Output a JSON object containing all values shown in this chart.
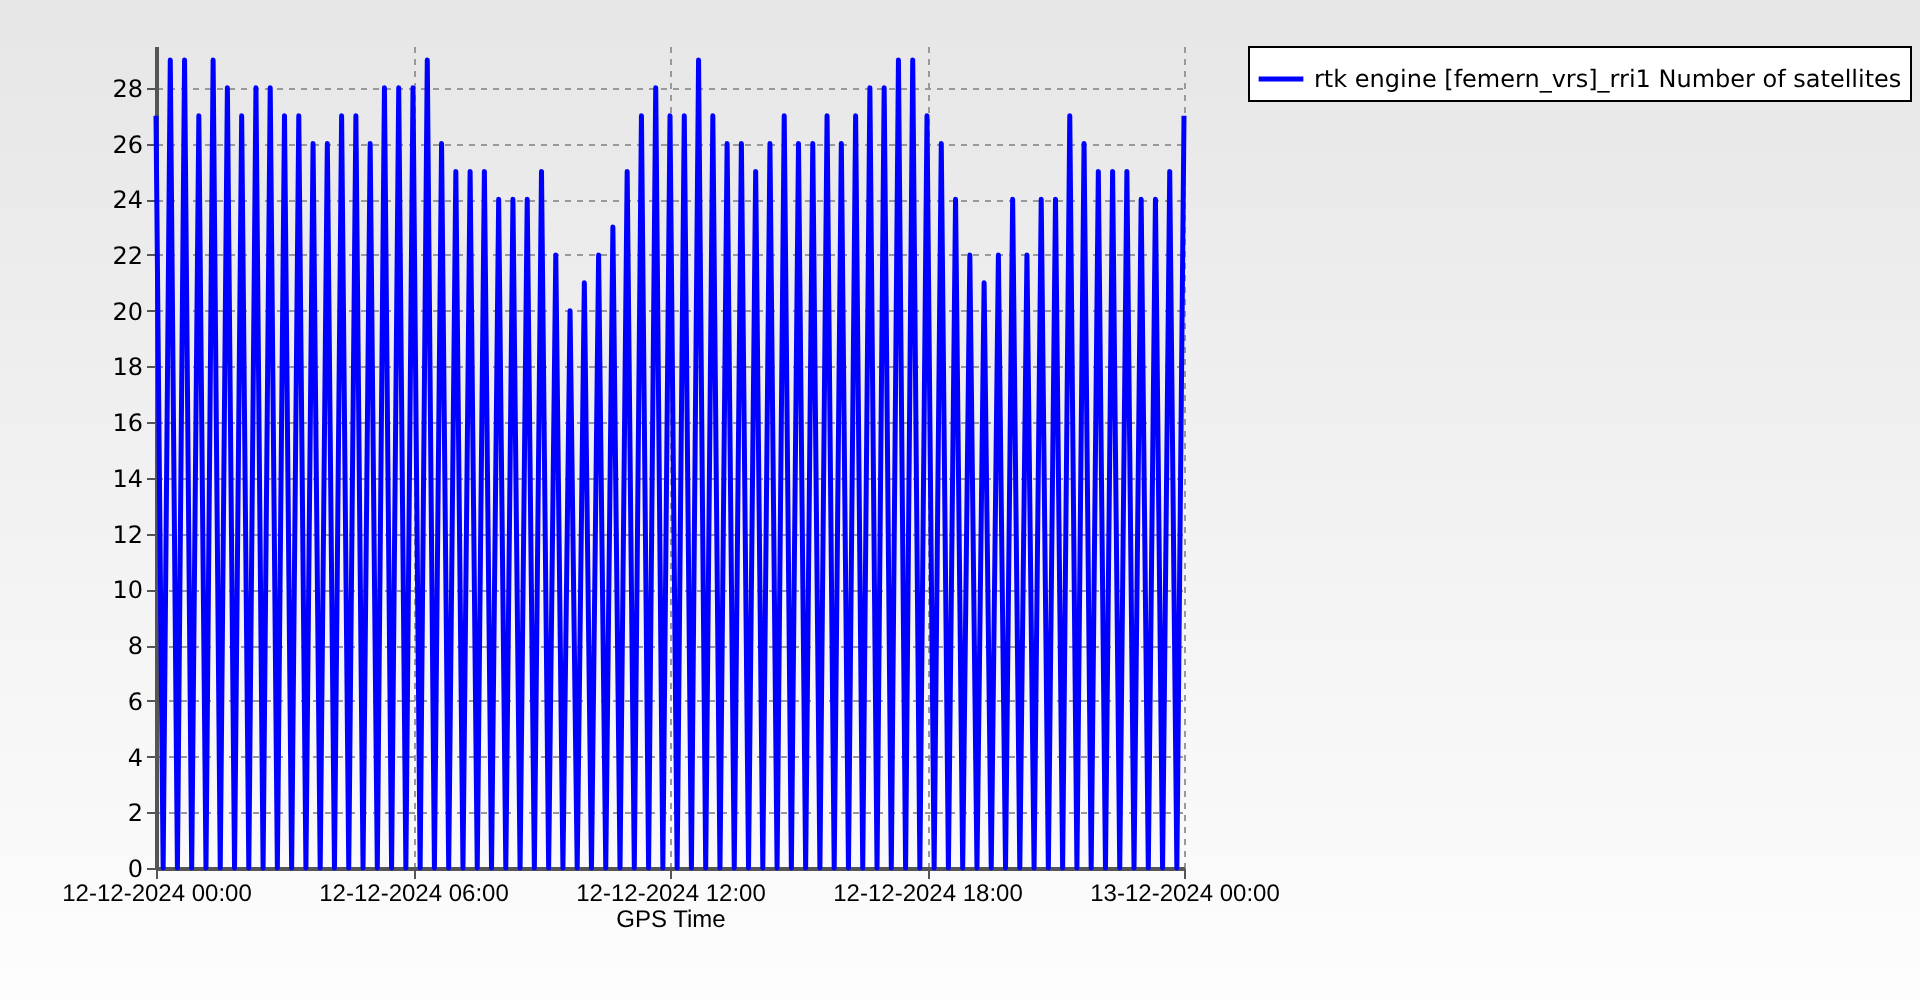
{
  "chart_data": {
    "type": "line",
    "xlabel": "GPS Time",
    "x": [
      "2024-12-12T00:00",
      "2024-12-12T00:10",
      "2024-12-12T00:20",
      "2024-12-12T00:30",
      "2024-12-12T00:40",
      "2024-12-12T00:50",
      "2024-12-12T01:00",
      "2024-12-12T01:10",
      "2024-12-12T01:20",
      "2024-12-12T01:30",
      "2024-12-12T01:40",
      "2024-12-12T01:50",
      "2024-12-12T02:00",
      "2024-12-12T02:10",
      "2024-12-12T02:20",
      "2024-12-12T02:30",
      "2024-12-12T02:40",
      "2024-12-12T02:50",
      "2024-12-12T03:00",
      "2024-12-12T03:10",
      "2024-12-12T03:20",
      "2024-12-12T03:30",
      "2024-12-12T03:40",
      "2024-12-12T03:50",
      "2024-12-12T04:00",
      "2024-12-12T04:10",
      "2024-12-12T04:20",
      "2024-12-12T04:30",
      "2024-12-12T04:40",
      "2024-12-12T04:50",
      "2024-12-12T05:00",
      "2024-12-12T05:10",
      "2024-12-12T05:20",
      "2024-12-12T05:30",
      "2024-12-12T05:40",
      "2024-12-12T05:50",
      "2024-12-12T06:00",
      "2024-12-12T06:10",
      "2024-12-12T06:20",
      "2024-12-12T06:30",
      "2024-12-12T06:40",
      "2024-12-12T06:50",
      "2024-12-12T07:00",
      "2024-12-12T07:10",
      "2024-12-12T07:20",
      "2024-12-12T07:30",
      "2024-12-12T07:40",
      "2024-12-12T07:50",
      "2024-12-12T08:00",
      "2024-12-12T08:10",
      "2024-12-12T08:20",
      "2024-12-12T08:30",
      "2024-12-12T08:40",
      "2024-12-12T08:50",
      "2024-12-12T09:00",
      "2024-12-12T09:10",
      "2024-12-12T09:20",
      "2024-12-12T09:30",
      "2024-12-12T09:40",
      "2024-12-12T09:50",
      "2024-12-12T10:00",
      "2024-12-12T10:10",
      "2024-12-12T10:20",
      "2024-12-12T10:30",
      "2024-12-12T10:40",
      "2024-12-12T10:50",
      "2024-12-12T11:00",
      "2024-12-12T11:10",
      "2024-12-12T11:20",
      "2024-12-12T11:30",
      "2024-12-12T11:40",
      "2024-12-12T11:50",
      "2024-12-12T12:00",
      "2024-12-12T12:10",
      "2024-12-12T12:20",
      "2024-12-12T12:30",
      "2024-12-12T12:40",
      "2024-12-12T12:50",
      "2024-12-12T13:00",
      "2024-12-12T13:10",
      "2024-12-12T13:20",
      "2024-12-12T13:30",
      "2024-12-12T13:40",
      "2024-12-12T13:50",
      "2024-12-12T14:00",
      "2024-12-12T14:10",
      "2024-12-12T14:20",
      "2024-12-12T14:30",
      "2024-12-12T14:40",
      "2024-12-12T14:50",
      "2024-12-12T15:00",
      "2024-12-12T15:10",
      "2024-12-12T15:20",
      "2024-12-12T15:30",
      "2024-12-12T15:40",
      "2024-12-12T15:50",
      "2024-12-12T16:00",
      "2024-12-12T16:10",
      "2024-12-12T16:20",
      "2024-12-12T16:30",
      "2024-12-12T16:40",
      "2024-12-12T16:50",
      "2024-12-12T17:00",
      "2024-12-12T17:10",
      "2024-12-12T17:20",
      "2024-12-12T17:30",
      "2024-12-12T17:40",
      "2024-12-12T17:50",
      "2024-12-12T18:00",
      "2024-12-12T18:10",
      "2024-12-12T18:20",
      "2024-12-12T18:30",
      "2024-12-12T18:40",
      "2024-12-12T18:50",
      "2024-12-12T19:00",
      "2024-12-12T19:10",
      "2024-12-12T19:20",
      "2024-12-12T19:30",
      "2024-12-12T19:40",
      "2024-12-12T19:50",
      "2024-12-12T20:00",
      "2024-12-12T20:10",
      "2024-12-12T20:20",
      "2024-12-12T20:30",
      "2024-12-12T20:40",
      "2024-12-12T20:50",
      "2024-12-12T21:00",
      "2024-12-12T21:10",
      "2024-12-12T21:20",
      "2024-12-12T21:30",
      "2024-12-12T21:40",
      "2024-12-12T21:50",
      "2024-12-12T22:00",
      "2024-12-12T22:10",
      "2024-12-12T22:20",
      "2024-12-12T22:30",
      "2024-12-12T22:40",
      "2024-12-12T22:50",
      "2024-12-12T23:00",
      "2024-12-12T23:10",
      "2024-12-12T23:20",
      "2024-12-12T23:30",
      "2024-12-12T23:40",
      "2024-12-12T23:50",
      "2024-12-13T00:00"
    ],
    "series": [
      {
        "name": "rtk engine [femern_vrs]_rri1 Number of satellites",
        "color": "#0000ff",
        "values": [
          27,
          0,
          29,
          0,
          29,
          0,
          27,
          0,
          29,
          0,
          28,
          0,
          27,
          0,
          28,
          0,
          28,
          0,
          27,
          0,
          27,
          0,
          26,
          0,
          26,
          0,
          27,
          0,
          27,
          0,
          26,
          0,
          28,
          0,
          28,
          0,
          28,
          0,
          29,
          0,
          26,
          0,
          25,
          0,
          25,
          0,
          25,
          0,
          24,
          0,
          24,
          0,
          24,
          0,
          25,
          0,
          22,
          0,
          20,
          0,
          21,
          0,
          22,
          0,
          23,
          0,
          25,
          0,
          27,
          0,
          28,
          0,
          27,
          0,
          27,
          0,
          29,
          0,
          27,
          0,
          26,
          0,
          26,
          0,
          25,
          0,
          26,
          0,
          27,
          0,
          26,
          0,
          26,
          0,
          27,
          0,
          26,
          0,
          27,
          0,
          28,
          0,
          28,
          0,
          29,
          0,
          29,
          0,
          27,
          0,
          26,
          0,
          24,
          0,
          22,
          0,
          21,
          0,
          22,
          0,
          24,
          0,
          22,
          0,
          24,
          0,
          24,
          0,
          27,
          0,
          26,
          0,
          25,
          0,
          25,
          0,
          25,
          0,
          24,
          0,
          24,
          0,
          25,
          0,
          27
        ]
      }
    ],
    "xlim": [
      "2024-12-12T00:00",
      "2024-12-13T00:00"
    ],
    "xticks": [
      {
        "value": "2024-12-12T00:00",
        "label": "12-12-2024 00:00"
      },
      {
        "value": "2024-12-12T06:00",
        "label": "12-12-2024 06:00"
      },
      {
        "value": "2024-12-12T12:00",
        "label": "12-12-2024 12:00"
      },
      {
        "value": "2024-12-12T18:00",
        "label": "12-12-2024 18:00"
      },
      {
        "value": "2024-12-13T00:00",
        "label": "13-12-2024 00:00"
      }
    ],
    "ylim": [
      0,
      29.5
    ],
    "yticks": [
      0,
      2,
      4,
      6,
      8,
      10,
      12,
      14,
      16,
      18,
      20,
      22,
      24,
      26,
      28
    ],
    "grid": true,
    "legend": "top right",
    "marker": "none",
    "line_style": "solid"
  }
}
